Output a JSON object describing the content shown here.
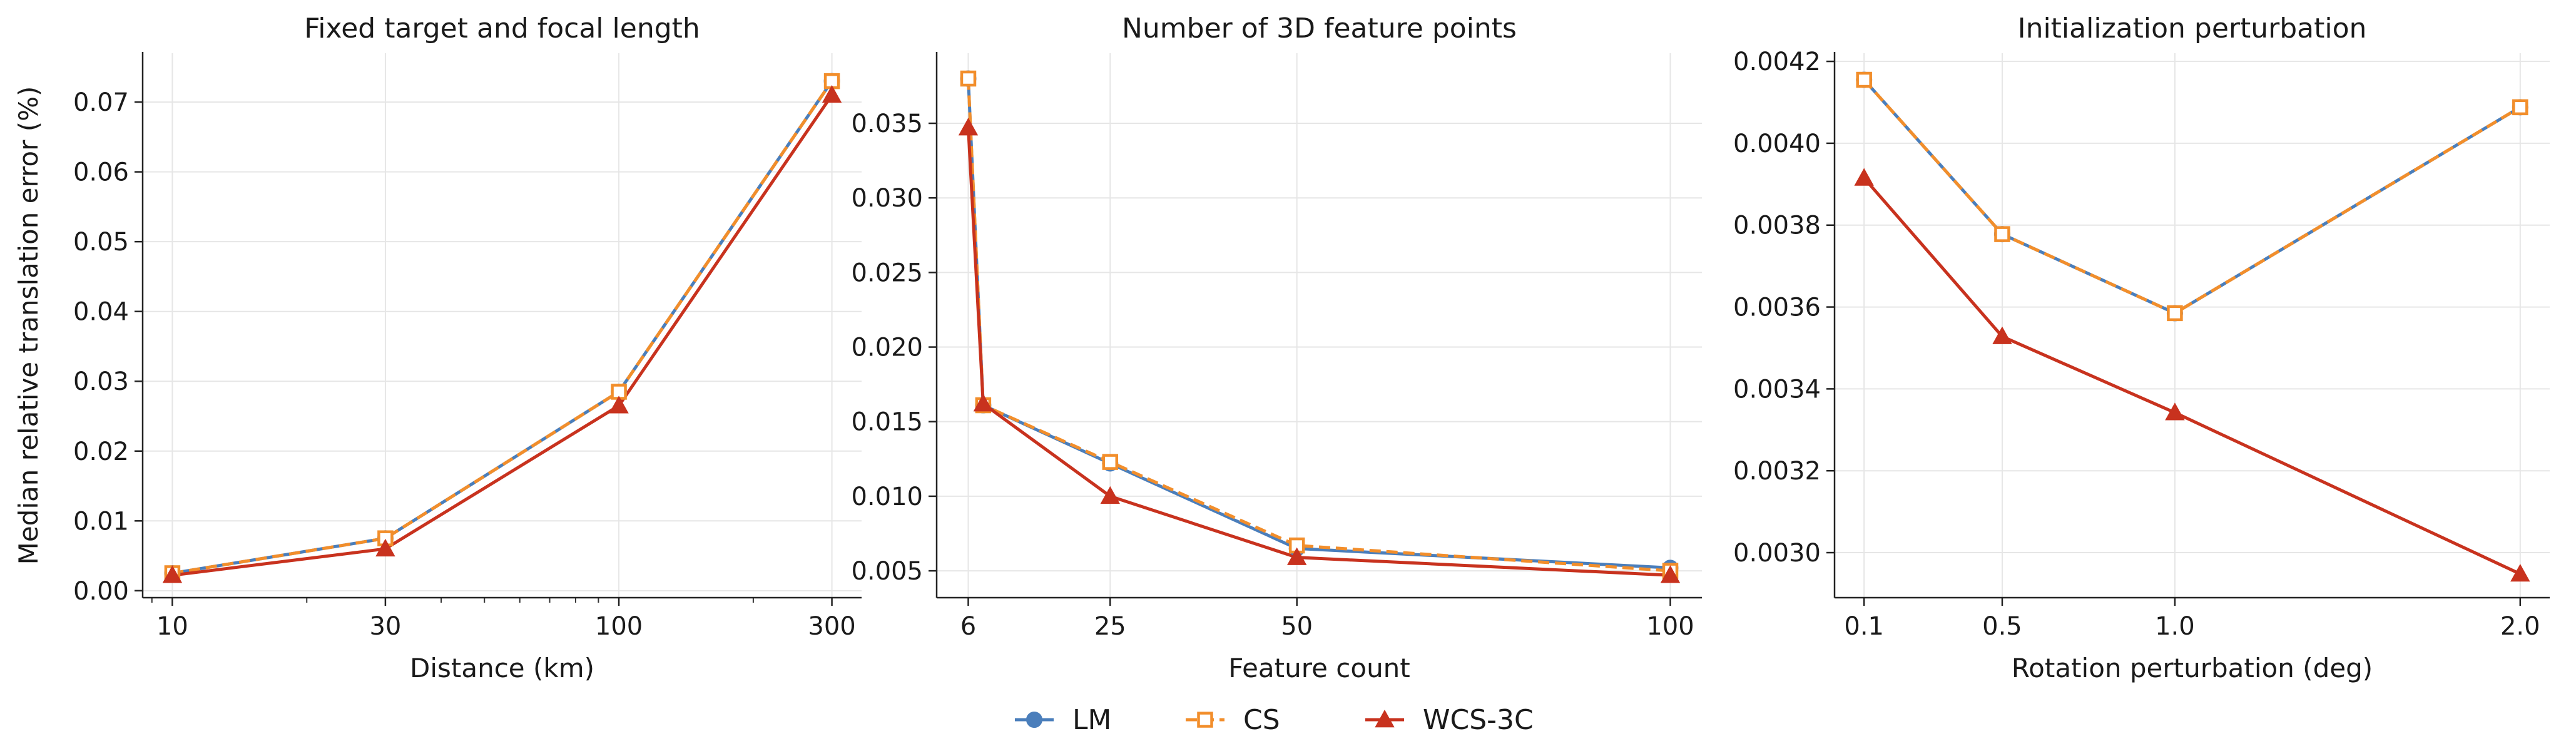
{
  "legend": [
    {
      "name": "LM",
      "color": "#4a7ebb",
      "marker": "circle",
      "dash": "solid"
    },
    {
      "name": "CS",
      "color": "#f28e2b",
      "marker": "open-square",
      "dash": "dashed"
    },
    {
      "name": "WCS-3C",
      "color": "#c8321e",
      "marker": "triangle",
      "dash": "solid"
    }
  ],
  "chart_data": [
    {
      "type": "line",
      "title": "Fixed target and focal length",
      "xlabel": "Distance (km)",
      "ylabel": "Median relative translation error (%)",
      "xscale": "log",
      "x": [
        10,
        30,
        100,
        300
      ],
      "xticks": [
        10,
        30,
        100,
        300
      ],
      "xticklabels": [
        "10",
        "30",
        "100",
        "300"
      ],
      "ylim": [
        -0.001,
        0.077
      ],
      "yticks": [
        0.0,
        0.01,
        0.02,
        0.03,
        0.04,
        0.05,
        0.06,
        0.07
      ],
      "yticklabels": [
        "0.00",
        "0.01",
        "0.02",
        "0.03",
        "0.04",
        "0.05",
        "0.06",
        "0.07"
      ],
      "grid": true,
      "series": [
        {
          "name": "LM",
          "values": [
            0.0025,
            0.0075,
            0.0285,
            0.073
          ]
        },
        {
          "name": "CS",
          "values": [
            0.0025,
            0.0075,
            0.0285,
            0.073
          ]
        },
        {
          "name": "WCS-3C",
          "values": [
            0.0022,
            0.006,
            0.0265,
            0.071
          ]
        }
      ]
    },
    {
      "type": "line",
      "title": "Number of 3D feature points",
      "xlabel": "Feature count",
      "ylabel": "",
      "xscale": "linear",
      "x": [
        6,
        8,
        25,
        50,
        100
      ],
      "xticks": [
        6,
        25,
        50,
        100
      ],
      "xticklabels": [
        "6",
        "25",
        "50",
        "100"
      ],
      "ylim": [
        0.0032,
        0.0397
      ],
      "yticks": [
        0.005,
        0.01,
        0.015,
        0.02,
        0.025,
        0.03,
        0.035
      ],
      "yticklabels": [
        "0.005",
        "0.010",
        "0.015",
        "0.020",
        "0.025",
        "0.030",
        "0.035"
      ],
      "grid": true,
      "series": [
        {
          "name": "LM",
          "values": [
            0.038,
            0.0161,
            0.0122,
            0.0065,
            0.0052
          ]
        },
        {
          "name": "CS",
          "values": [
            0.038,
            0.0161,
            0.0123,
            0.0067,
            0.005
          ]
        },
        {
          "name": "WCS-3C",
          "values": [
            0.0347,
            0.0162,
            0.01,
            0.0059,
            0.0047
          ]
        }
      ]
    },
    {
      "type": "line",
      "title": "Initialization perturbation",
      "xlabel": "Rotation perturbation (deg)",
      "ylabel": "",
      "xscale": "linear",
      "x": [
        0.1,
        0.5,
        1.0,
        2.0
      ],
      "xticks": [
        0.1,
        0.5,
        1.0,
        2.0
      ],
      "xticklabels": [
        "0.1",
        "0.5",
        "1.0",
        "2.0"
      ],
      "ylim": [
        0.00289,
        0.00422
      ],
      "yticks": [
        0.003,
        0.0032,
        0.0034,
        0.0036,
        0.0038,
        0.004,
        0.0042
      ],
      "yticklabels": [
        "0.0030",
        "0.0032",
        "0.0034",
        "0.0036",
        "0.0038",
        "0.0040",
        "0.0042"
      ],
      "grid": true,
      "series": [
        {
          "name": "LM",
          "values": [
            0.004155,
            0.003778,
            0.003585,
            0.004088
          ]
        },
        {
          "name": "CS",
          "values": [
            0.004155,
            0.003778,
            0.003585,
            0.004088
          ]
        },
        {
          "name": "WCS-3C",
          "values": [
            0.003915,
            0.003528,
            0.003342,
            0.002948
          ]
        }
      ]
    }
  ]
}
